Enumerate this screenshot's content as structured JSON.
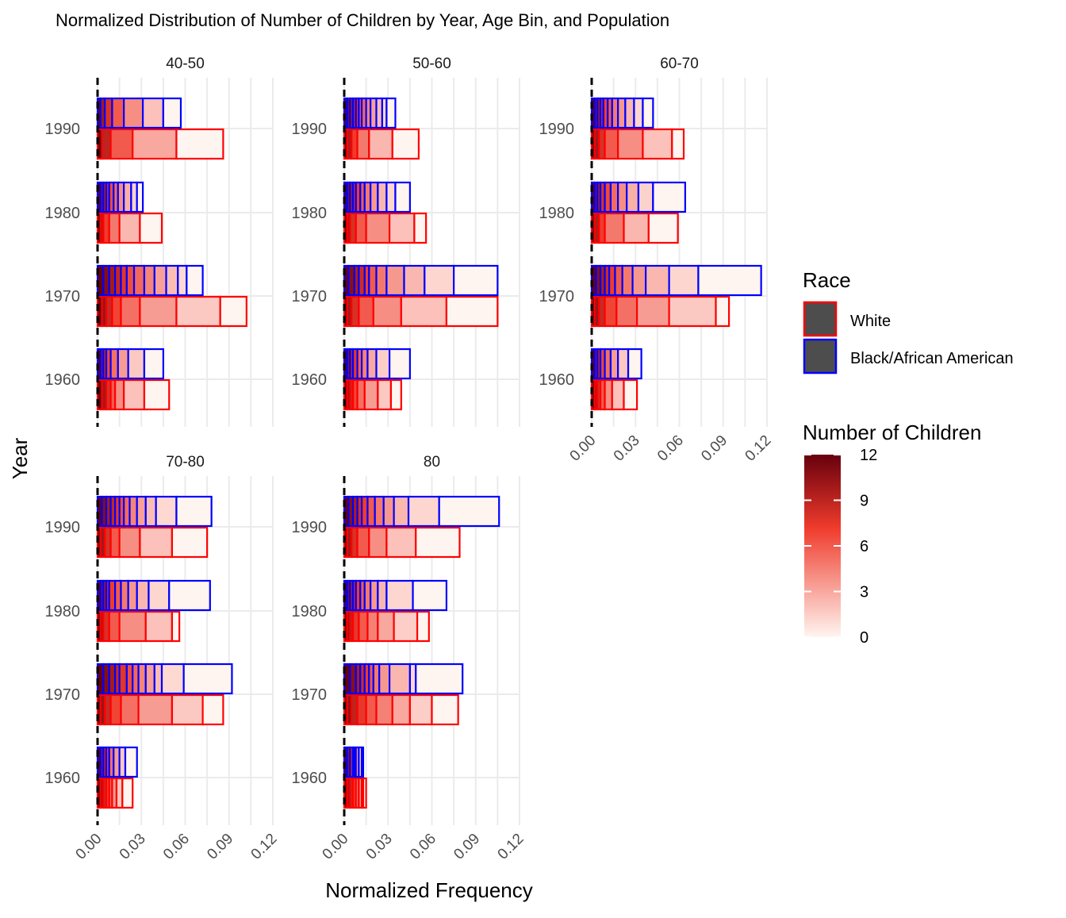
{
  "chart_data": {
    "type": "bar",
    "title": "Normalized Distribution of Number of Children by Year, Age Bin, and Population",
    "xlabel": "Normalized Frequency",
    "ylabel": "Year",
    "xlim": [
      0,
      0.12
    ],
    "x_ticks": [
      0,
      0.03,
      0.06,
      0.09,
      0.12
    ],
    "x_tick_labels": [
      "0.00",
      "0.03",
      "0.06",
      "0.09",
      "0.12"
    ],
    "years": [
      "1960",
      "1970",
      "1980",
      "1990"
    ],
    "reference_line_x": 0,
    "legend": {
      "race_title": "Race",
      "race_entries": [
        {
          "label": "White",
          "color": "#ff0000"
        },
        {
          "label": "Black/African American",
          "color": "#0000ff"
        }
      ],
      "fill_title": "Number of Children",
      "fill_range": [
        0,
        12
      ],
      "fill_ticks": [
        "0",
        "3",
        "6",
        "9",
        "12"
      ],
      "fill_low_color": "#fff5f0",
      "fill_high_color": "#67000d"
    },
    "panels": [
      {
        "label": "40-50",
        "bars": {
          "1960": {
            "White": [
              0.003,
              0.006,
              0.009,
              0.012,
              0.018,
              0.032,
              0.049
            ],
            "Black/African American": [
              0.002,
              0.004,
              0.006,
              0.009,
              0.014,
              0.021,
              0.032,
              0.045
            ]
          },
          "1970": {
            "White": [
              0.003,
              0.006,
              0.01,
              0.016,
              0.029,
              0.054,
              0.084,
              0.102
            ],
            "Black/African American": [
              0.004,
              0.008,
              0.012,
              0.016,
              0.02,
              0.025,
              0.032,
              0.039,
              0.047,
              0.055,
              0.061,
              0.072
            ]
          },
          "1980": {
            "White": [
              0.002,
              0.004,
              0.008,
              0.015,
              0.029,
              0.044
            ],
            "Black/African American": [
              0.002,
              0.004,
              0.006,
              0.008,
              0.011,
              0.014,
              0.018,
              0.023,
              0.027,
              0.031
            ]
          },
          "1990": {
            "White": [
              0.003,
              0.009,
              0.024,
              0.054,
              0.086
            ],
            "Black/African American": [
              0.002,
              0.005,
              0.01,
              0.018,
              0.031,
              0.045,
              0.057
            ]
          }
        }
      },
      {
        "label": "50-60",
        "bars": {
          "1960": {
            "White": [
              0.002,
              0.004,
              0.006,
              0.009,
              0.014,
              0.023,
              0.032,
              0.039
            ],
            "Black/African American": [
              0.002,
              0.004,
              0.006,
              0.009,
              0.012,
              0.016,
              0.022,
              0.031,
              0.045
            ]
          },
          "1970": {
            "White": [
              0.002,
              0.005,
              0.01,
              0.02,
              0.039,
              0.07,
              0.105
            ],
            "Black/African American": [
              0.003,
              0.007,
              0.01,
              0.014,
              0.017,
              0.022,
              0.029,
              0.041,
              0.055,
              0.075,
              0.105
            ]
          },
          "1980": {
            "White": [
              0.002,
              0.004,
              0.008,
              0.015,
              0.031,
              0.048,
              0.056
            ],
            "Black/African American": [
              0.002,
              0.004,
              0.006,
              0.008,
              0.011,
              0.014,
              0.018,
              0.023,
              0.029,
              0.035,
              0.045
            ]
          },
          "1990": {
            "White": [
              0.002,
              0.005,
              0.009,
              0.017,
              0.033,
              0.051
            ],
            "Black/African American": [
              0.002,
              0.004,
              0.006,
              0.008,
              0.01,
              0.012,
              0.015,
              0.018,
              0.022,
              0.026,
              0.029,
              0.035
            ]
          }
        }
      },
      {
        "label": "60-70",
        "bars": {
          "1960": {
            "White": [
              0.002,
              0.004,
              0.006,
              0.009,
              0.014,
              0.022,
              0.031
            ],
            "Black/African American": [
              0.002,
              0.004,
              0.006,
              0.009,
              0.013,
              0.018,
              0.025,
              0.034
            ]
          },
          "1970": {
            "White": [
              0.002,
              0.005,
              0.009,
              0.017,
              0.031,
              0.053,
              0.085,
              0.094
            ],
            "Black/African American": [
              0.003,
              0.006,
              0.009,
              0.012,
              0.016,
              0.021,
              0.028,
              0.037,
              0.053,
              0.073,
              0.116
            ]
          },
          "1980": {
            "White": [
              0.002,
              0.005,
              0.009,
              0.022,
              0.039,
              0.059
            ],
            "Black/African American": [
              0.002,
              0.004,
              0.006,
              0.009,
              0.013,
              0.018,
              0.024,
              0.032,
              0.042,
              0.064
            ]
          },
          "1990": {
            "White": [
              0.002,
              0.005,
              0.009,
              0.018,
              0.035,
              0.055,
              0.063
            ],
            "Black/African American": [
              0.002,
              0.004,
              0.006,
              0.008,
              0.011,
              0.014,
              0.018,
              0.023,
              0.029,
              0.035,
              0.042
            ]
          }
        }
      },
      {
        "label": "70-80",
        "bars": {
          "1960": {
            "White": [
              0.002,
              0.004,
              0.006,
              0.008,
              0.01,
              0.013,
              0.017,
              0.024
            ],
            "Black/African American": [
              0.002,
              0.004,
              0.006,
              0.008,
              0.011,
              0.015,
              0.019,
              0.027
            ]
          },
          "1970": {
            "White": [
              0.002,
              0.005,
              0.009,
              0.016,
              0.028,
              0.051,
              0.072,
              0.086
            ],
            "Black/African American": [
              0.004,
              0.008,
              0.012,
              0.015,
              0.02,
              0.024,
              0.028,
              0.033,
              0.039,
              0.044,
              0.059,
              0.092
            ]
          },
          "1980": {
            "White": [
              0.002,
              0.004,
              0.008,
              0.015,
              0.033,
              0.051,
              0.056
            ],
            "Black/African American": [
              0.002,
              0.004,
              0.006,
              0.008,
              0.012,
              0.016,
              0.021,
              0.027,
              0.035,
              0.049,
              0.077
            ]
          },
          "1990": {
            "White": [
              0.002,
              0.005,
              0.009,
              0.015,
              0.029,
              0.051,
              0.075
            ],
            "Black/African American": [
              0.003,
              0.006,
              0.009,
              0.012,
              0.015,
              0.018,
              0.022,
              0.027,
              0.033,
              0.04,
              0.054,
              0.078
            ]
          }
        }
      },
      {
        "label": "80",
        "bars": {
          "1960": {
            "White": [
              0.002,
              0.004,
              0.006,
              0.008,
              0.01,
              0.012,
              0.013,
              0.015
            ],
            "Black/African American": [
              0.002,
              0.004,
              0.006,
              0.007,
              0.008,
              0.01,
              0.012,
              0.013
            ]
          },
          "1970": {
            "White": [
              0.002,
              0.005,
              0.009,
              0.015,
              0.022,
              0.033,
              0.045,
              0.06,
              0.078
            ],
            "Black/African American": [
              0.004,
              0.008,
              0.011,
              0.014,
              0.017,
              0.02,
              0.024,
              0.031,
              0.045,
              0.049,
              0.081
            ]
          },
          "1980": {
            "White": [
              0.002,
              0.004,
              0.006,
              0.01,
              0.016,
              0.023,
              0.034,
              0.05,
              0.058
            ],
            "Black/African American": [
              0.002,
              0.004,
              0.006,
              0.008,
              0.011,
              0.014,
              0.018,
              0.023,
              0.029,
              0.047,
              0.07
            ]
          },
          "1990": {
            "White": [
              0.002,
              0.005,
              0.009,
              0.017,
              0.029,
              0.049,
              0.079
            ],
            "Black/African American": [
              0.003,
              0.006,
              0.009,
              0.012,
              0.016,
              0.021,
              0.027,
              0.034,
              0.044,
              0.065,
              0.106
            ]
          }
        }
      }
    ]
  }
}
